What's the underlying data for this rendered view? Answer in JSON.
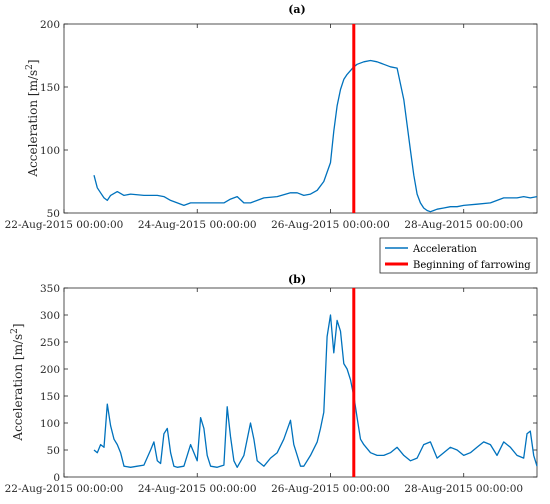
{
  "chart_data": [
    {
      "type": "line",
      "title": "(a)",
      "ylabel": "Acceleration [m/s",
      "ylabel_sup": "2",
      "ylabel_close": "]",
      "ylim": [
        50,
        200
      ],
      "yticks": [
        50,
        100,
        150,
        200
      ],
      "xticks": [
        "22-Aug-2015 00:00:00",
        "24-Aug-2015 00:00:00",
        "26-Aug-2015 00:00:00",
        "28-Aug-2015 00:00:00"
      ],
      "xlim_days": [
        22,
        29.1
      ],
      "color": "#0072BD",
      "farrowing_day": 26.35,
      "series": [
        {
          "name": "Acceleration",
          "x": [
            22.45,
            22.5,
            22.55,
            22.6,
            22.65,
            22.7,
            22.8,
            22.9,
            23.0,
            23.2,
            23.4,
            23.5,
            23.6,
            23.7,
            23.8,
            23.9,
            24.0,
            24.2,
            24.4,
            24.5,
            24.6,
            24.7,
            24.8,
            24.9,
            25.0,
            25.2,
            25.4,
            25.5,
            25.6,
            25.7,
            25.8,
            25.9,
            26.0,
            26.05,
            26.1,
            26.15,
            26.2,
            26.25,
            26.3,
            26.35,
            26.4,
            26.5,
            26.6,
            26.7,
            26.8,
            26.9,
            27.0,
            27.1,
            27.15,
            27.2,
            27.25,
            27.3,
            27.35,
            27.4,
            27.45,
            27.5,
            27.55,
            27.6,
            27.7,
            27.8,
            27.9,
            28.0,
            28.2,
            28.4,
            28.6,
            28.8,
            28.9,
            29.0,
            29.1
          ],
          "y": [
            80,
            70,
            66,
            62,
            60,
            64,
            67,
            64,
            65,
            64,
            64,
            63,
            60,
            58,
            56,
            58,
            58,
            58,
            58,
            61,
            63,
            58,
            58,
            60,
            62,
            63,
            66,
            66,
            64,
            65,
            68,
            75,
            90,
            115,
            135,
            148,
            156,
            160,
            163,
            166,
            168,
            170,
            171,
            170,
            168,
            166,
            165,
            140,
            120,
            100,
            80,
            65,
            58,
            54,
            52,
            51,
            52,
            53,
            54,
            55,
            55,
            56,
            57,
            58,
            62,
            62,
            63,
            62,
            63
          ]
        }
      ]
    },
    {
      "type": "line",
      "title": "(b)",
      "ylabel": "Acceleration [m/s",
      "ylabel_sup": "2",
      "ylabel_close": "]",
      "ylim": [
        0,
        350
      ],
      "yticks": [
        0,
        50,
        100,
        150,
        200,
        250,
        300,
        350
      ],
      "xticks": [
        "22-Aug-2015 00:00:00",
        "24-Aug-2015 00:00:00",
        "26-Aug-2015 00:00:00",
        "28-Aug-2015 00:00:00"
      ],
      "xlim_days": [
        22,
        29.1
      ],
      "color": "#0072BD",
      "farrowing_day": 26.35,
      "series": [
        {
          "name": "Acceleration",
          "x": [
            22.45,
            22.5,
            22.55,
            22.6,
            22.65,
            22.7,
            22.75,
            22.8,
            22.85,
            22.9,
            23.0,
            23.1,
            23.2,
            23.3,
            23.35,
            23.4,
            23.45,
            23.5,
            23.55,
            23.6,
            23.65,
            23.7,
            23.8,
            23.9,
            24.0,
            24.05,
            24.1,
            24.15,
            24.2,
            24.3,
            24.4,
            24.45,
            24.5,
            24.55,
            24.6,
            24.7,
            24.8,
            24.85,
            24.9,
            25.0,
            25.1,
            25.2,
            25.3,
            25.4,
            25.45,
            25.5,
            25.55,
            25.6,
            25.7,
            25.8,
            25.85,
            25.9,
            25.95,
            26.0,
            26.05,
            26.1,
            26.15,
            26.2,
            26.25,
            26.3,
            26.35,
            26.4,
            26.45,
            26.5,
            26.6,
            26.7,
            26.8,
            26.9,
            27.0,
            27.1,
            27.2,
            27.3,
            27.4,
            27.5,
            27.6,
            27.7,
            27.8,
            27.9,
            28.0,
            28.1,
            28.2,
            28.3,
            28.4,
            28.5,
            28.6,
            28.7,
            28.8,
            28.9,
            28.95,
            29.0,
            29.05,
            29.1
          ],
          "y": [
            50,
            45,
            60,
            55,
            135,
            95,
            70,
            60,
            45,
            20,
            18,
            20,
            22,
            50,
            65,
            30,
            25,
            80,
            90,
            45,
            20,
            18,
            20,
            60,
            30,
            110,
            90,
            40,
            20,
            18,
            22,
            130,
            75,
            30,
            18,
            40,
            100,
            70,
            30,
            20,
            35,
            45,
            70,
            105,
            60,
            40,
            20,
            20,
            40,
            65,
            90,
            120,
            260,
            300,
            230,
            290,
            270,
            210,
            200,
            180,
            150,
            110,
            70,
            60,
            45,
            40,
            40,
            45,
            55,
            40,
            30,
            35,
            60,
            65,
            35,
            45,
            55,
            50,
            40,
            45,
            55,
            65,
            60,
            40,
            65,
            55,
            40,
            35,
            80,
            85,
            40,
            20
          ]
        }
      ]
    }
  ],
  "legend": {
    "placement": "right, between panels",
    "items": [
      {
        "label": "Acceleration",
        "color": "#0072BD"
      },
      {
        "label": "Beginning of farrowing",
        "color": "#ff0000"
      }
    ]
  }
}
